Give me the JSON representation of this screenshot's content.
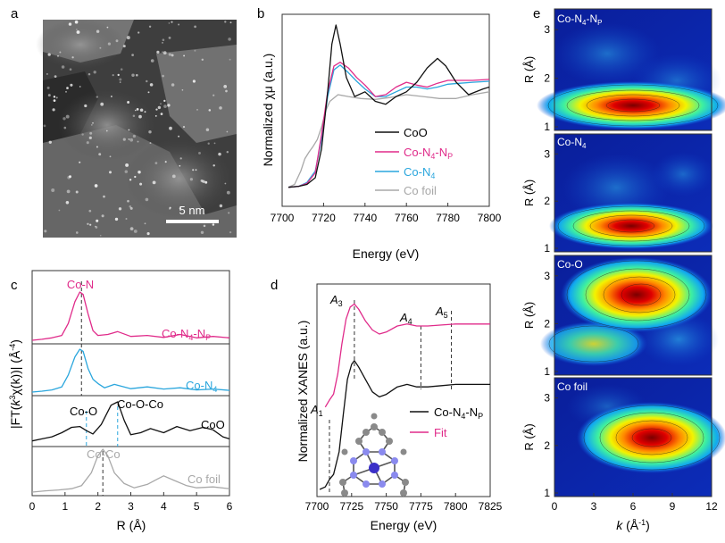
{
  "panels": {
    "a": {
      "letter": "a",
      "scalebar": "5 nm"
    },
    "b": {
      "letter": "b",
      "xlabel": "Energy (eV)",
      "ylabel": "Normalized χμ (a.u.)",
      "legend": [
        "CoO",
        "Co-N4-NP",
        "Co-N4",
        "Co foil"
      ]
    },
    "c": {
      "letter": "c",
      "xlabel": "R (Å)",
      "ylabel": "|FT(k3χ(k))| (Å-4)",
      "labels": {
        "con": "Co-N",
        "cn4np": "Co-N4-NP",
        "cn4": "Co-N4",
        "coo_short": "Co-O",
        "coocco": "Co-O-Co",
        "coo": "CoO",
        "coco": "Co-Co",
        "cofoil": "Co foil"
      }
    },
    "d": {
      "letter": "d",
      "xlabel": "Energy (eV)",
      "ylabel": "Normalized XANES (a.u.)",
      "legend": [
        "Co-N4-NP",
        "Fit"
      ],
      "features": [
        "A1",
        "A3",
        "A4",
        "A5"
      ]
    },
    "e": {
      "letter": "e",
      "xlabel": "k (Å-1)",
      "ylabel": "R (Å)",
      "maps": [
        "Co-N4-NP",
        "Co-N4",
        "Co-O",
        "Co foil"
      ]
    }
  },
  "chart_data": [
    {
      "panel": "b",
      "type": "line",
      "xlabel": "Energy (eV)",
      "ylabel": "Normalized χμ (a.u.)",
      "xlim": [
        7700,
        7800
      ],
      "x_ticks": [
        7700,
        7720,
        7740,
        7760,
        7780,
        7800
      ],
      "ylim": [
        0,
        1.75
      ],
      "legend_position": "right",
      "series": [
        {
          "name": "CoO",
          "color": "#111111",
          "x": [
            7703,
            7708,
            7712,
            7716,
            7719,
            7722,
            7724,
            7726,
            7728,
            7731,
            7735,
            7740,
            7745,
            7750,
            7755,
            7760,
            7765,
            7770,
            7775,
            7779,
            7784,
            7790,
            7797,
            7800
          ],
          "y": [
            0.05,
            0.06,
            0.08,
            0.15,
            0.45,
            1.05,
            1.55,
            1.75,
            1.55,
            1.2,
            1.0,
            1.05,
            0.95,
            0.92,
            1.0,
            1.05,
            1.15,
            1.3,
            1.4,
            1.32,
            1.15,
            1.02,
            1.08,
            1.1
          ]
        },
        {
          "name": "Co-N4-NP",
          "color": "#e02b8a",
          "x": [
            7703,
            7708,
            7712,
            7716,
            7719,
            7722,
            7725,
            7728,
            7732,
            7736,
            7740,
            7745,
            7750,
            7755,
            7760,
            7765,
            7770,
            7775,
            7780,
            7786,
            7792,
            7800
          ],
          "y": [
            0.05,
            0.06,
            0.09,
            0.2,
            0.6,
            1.05,
            1.32,
            1.36,
            1.3,
            1.2,
            1.12,
            1.0,
            1.02,
            1.1,
            1.15,
            1.12,
            1.1,
            1.14,
            1.17,
            1.17,
            1.17,
            1.18
          ]
        },
        {
          "name": "Co-N4",
          "color": "#2aa6dd",
          "x": [
            7703,
            7708,
            7712,
            7716,
            7719,
            7722,
            7725,
            7728,
            7732,
            7736,
            7740,
            7745,
            7750,
            7755,
            7760,
            7765,
            7770,
            7775,
            7780,
            7786,
            7792,
            7800
          ],
          "y": [
            0.05,
            0.06,
            0.1,
            0.22,
            0.55,
            1.0,
            1.28,
            1.33,
            1.25,
            1.16,
            1.08,
            1.0,
            1.0,
            1.05,
            1.1,
            1.1,
            1.08,
            1.1,
            1.13,
            1.14,
            1.15,
            1.16
          ]
        },
        {
          "name": "Co foil",
          "color": "#a8a8a8",
          "x": [
            7703,
            7706,
            7709,
            7711,
            7713,
            7715,
            7717,
            7719,
            7721,
            7723,
            7727,
            7732,
            7738,
            7745,
            7752,
            7760,
            7768,
            7776,
            7784,
            7792,
            7800
          ],
          "y": [
            0.05,
            0.08,
            0.22,
            0.35,
            0.42,
            0.48,
            0.55,
            0.68,
            0.85,
            0.95,
            1.02,
            1.0,
            0.98,
            0.97,
            0.99,
            1.02,
            1.0,
            0.98,
            0.98,
            1.02,
            1.05
          ]
        }
      ]
    },
    {
      "panel": "c",
      "type": "line",
      "xlabel": "R (Å)",
      "ylabel": "|FT(k3χ(k))| (Å-4)",
      "xlim": [
        0,
        6
      ],
      "x_ticks": [
        0,
        1,
        2,
        3,
        4,
        5,
        6
      ],
      "reference_lines": [
        1.5,
        1.65,
        2.15,
        2.6
      ],
      "series": [
        {
          "name": "Co-N4-NP",
          "color": "#e02b8a",
          "x": [
            0.0,
            0.3,
            0.6,
            0.9,
            1.1,
            1.3,
            1.45,
            1.55,
            1.7,
            1.85,
            2.0,
            2.3,
            2.6,
            3.0,
            3.5,
            4.0,
            4.5,
            5.0,
            5.5,
            6.0
          ],
          "y": [
            0.0,
            0.02,
            0.05,
            0.1,
            0.35,
            0.8,
            1.0,
            0.95,
            0.55,
            0.2,
            0.1,
            0.12,
            0.18,
            0.08,
            0.1,
            0.06,
            0.12,
            0.05,
            0.08,
            0.05
          ]
        },
        {
          "name": "Co-N4",
          "color": "#2aa6dd",
          "x": [
            0.0,
            0.3,
            0.6,
            0.9,
            1.1,
            1.3,
            1.45,
            1.55,
            1.7,
            1.85,
            2.0,
            2.2,
            2.5,
            3.0,
            3.5,
            4.0,
            4.5,
            5.0,
            5.5,
            6.0
          ],
          "y": [
            0.0,
            0.02,
            0.05,
            0.12,
            0.4,
            0.82,
            1.0,
            0.95,
            0.55,
            0.3,
            0.2,
            0.1,
            0.18,
            0.08,
            0.12,
            0.07,
            0.1,
            0.05,
            0.07,
            0.04
          ]
        },
        {
          "name": "CoO",
          "color": "#111111",
          "x": [
            0.0,
            0.3,
            0.6,
            0.9,
            1.2,
            1.45,
            1.65,
            1.85,
            2.1,
            2.4,
            2.6,
            2.8,
            3.0,
            3.3,
            3.6,
            4.0,
            4.4,
            4.8,
            5.2,
            5.5,
            5.8,
            6.0
          ],
          "y": [
            0.05,
            0.1,
            0.15,
            0.25,
            0.38,
            0.4,
            0.3,
            0.22,
            0.45,
            0.92,
            1.0,
            0.55,
            0.2,
            0.25,
            0.35,
            0.25,
            0.4,
            0.3,
            0.38,
            0.32,
            0.15,
            0.1
          ]
        },
        {
          "name": "Co foil",
          "color": "#a8a8a8",
          "x": [
            0.0,
            0.4,
            0.8,
            1.2,
            1.5,
            1.8,
            2.0,
            2.15,
            2.3,
            2.5,
            2.8,
            3.1,
            3.5,
            3.8,
            4.0,
            4.3,
            4.7,
            5.0,
            5.5,
            6.0
          ],
          "y": [
            0.0,
            0.03,
            0.05,
            0.08,
            0.15,
            0.45,
            0.85,
            1.0,
            0.85,
            0.45,
            0.2,
            0.1,
            0.18,
            0.3,
            0.38,
            0.28,
            0.15,
            0.1,
            0.12,
            0.08
          ]
        }
      ]
    },
    {
      "panel": "d",
      "type": "line",
      "xlabel": "Energy (eV)",
      "ylabel": "Normalized XANES (a.u.)",
      "xlim": [
        7700,
        7825
      ],
      "x_ticks": [
        7700,
        7725,
        7750,
        7775,
        7800,
        7825
      ],
      "feature_energies": [
        7709,
        7727,
        7775,
        7797
      ],
      "series": [
        {
          "name": "Co-N4-NP",
          "color": "#111111",
          "x": [
            7702,
            7706,
            7709,
            7712,
            7716,
            7719,
            7722,
            7725,
            7727,
            7730,
            7735,
            7740,
            7745,
            7750,
            7758,
            7765,
            7772,
            7780,
            7790,
            7800,
            7810,
            7825
          ],
          "y": [
            0.0,
            0.02,
            0.08,
            0.12,
            0.3,
            0.6,
            0.88,
            1.0,
            1.03,
            0.98,
            0.88,
            0.78,
            0.74,
            0.76,
            0.82,
            0.84,
            0.82,
            0.82,
            0.83,
            0.84,
            0.84,
            0.84
          ]
        },
        {
          "name": "Fit",
          "color": "#e02b8a",
          "x": [
            7706,
            7709,
            7712,
            7715,
            7718,
            7721,
            7724,
            7727,
            7730,
            7735,
            7740,
            7745,
            7750,
            7758,
            7765,
            7772,
            7780,
            7790,
            7800,
            7810,
            7825
          ],
          "y": [
            0.02,
            0.09,
            0.15,
            0.35,
            0.65,
            0.9,
            1.02,
            1.05,
            1.0,
            0.88,
            0.79,
            0.75,
            0.77,
            0.83,
            0.85,
            0.83,
            0.83,
            0.84,
            0.85,
            0.85,
            0.85
          ]
        }
      ]
    },
    {
      "panel": "e",
      "type": "heatmap",
      "xlabel": "k (Å-1)",
      "ylabel": "R (Å)",
      "xlim": [
        0,
        12
      ],
      "x_ticks": [
        0,
        3,
        6,
        9,
        12
      ],
      "ylim": [
        1,
        3.5
      ],
      "y_ticks": [
        1,
        2,
        3
      ],
      "maps": [
        {
          "name": "Co-N4-NP",
          "peak_k": 6,
          "peak_R": 1.5
        },
        {
          "name": "Co-N4",
          "peak_k": 6,
          "peak_R": 1.5
        },
        {
          "name": "Co-O",
          "peak_k": 6.5,
          "peak_R": 2.6
        },
        {
          "name": "Co foil",
          "peak_k": 7,
          "peak_R": 2.2
        }
      ]
    }
  ]
}
